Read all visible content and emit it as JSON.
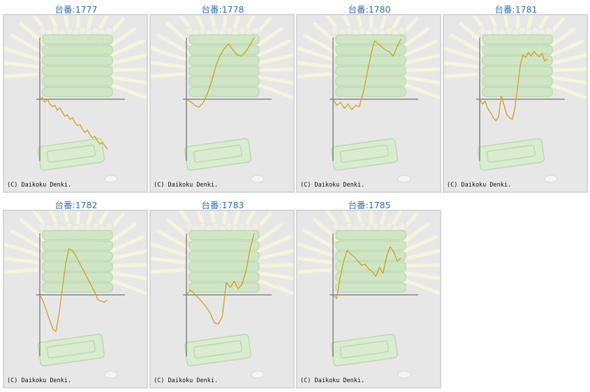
{
  "copyright": "(C) Daikoku Denki.",
  "colors": {
    "line": "#d59f1d",
    "axis": "#555555",
    "panel_bg": "#e7e7e7",
    "title": "#2e6eb5"
  },
  "machines": [
    {
      "label": "台番:1777"
    },
    {
      "label": "台番:1778"
    },
    {
      "label": "台番:1780"
    },
    {
      "label": "台番:1781"
    },
    {
      "label": "台番:1782"
    },
    {
      "label": "台番:1783"
    },
    {
      "label": "台番:1785"
    }
  ],
  "chart_data": [
    {
      "type": "line",
      "series": [
        {
          "values": [
            0.0,
            0.03,
            -0.05,
            0.0,
            -0.08,
            -0.12,
            -0.1,
            -0.18,
            -0.14,
            -0.21,
            -0.28,
            -0.25,
            -0.33,
            -0.3,
            -0.38,
            -0.43,
            -0.41,
            -0.49,
            -0.54,
            -0.5,
            -0.58,
            -0.63,
            -0.6,
            -0.68,
            -0.73,
            -0.7,
            -0.76,
            -0.81
          ]
        }
      ]
    },
    {
      "type": "line",
      "series": [
        {
          "values": [
            0.0,
            -0.04,
            -0.1,
            -0.13,
            -0.05,
            0.1,
            0.3,
            0.55,
            0.72,
            0.83,
            0.9,
            0.8,
            0.72,
            0.7,
            0.77,
            0.88,
            1.0
          ]
        }
      ]
    },
    {
      "type": "line",
      "series": [
        {
          "values": [
            0.0,
            -0.1,
            -0.05,
            -0.15,
            -0.08,
            -0.17,
            -0.1,
            -0.12,
            0.1,
            0.4,
            0.7,
            0.95,
            0.9,
            0.85,
            0.8,
            0.77,
            0.7,
            0.85,
            0.98
          ]
        }
      ]
    },
    {
      "type": "line",
      "series": [
        {
          "values": [
            0.0,
            -0.08,
            -0.03,
            -0.15,
            -0.22,
            -0.3,
            -0.35,
            -0.28,
            0.05,
            -0.1,
            -0.25,
            -0.3,
            -0.33,
            -0.15,
            0.2,
            0.55,
            0.72,
            0.68,
            0.76,
            0.7,
            0.78,
            0.73,
            0.69,
            0.75,
            0.62,
            0.65
          ]
        }
      ]
    },
    {
      "type": "line",
      "series": [
        {
          "values": [
            0.0,
            -0.1,
            -0.25,
            -0.4,
            -0.55,
            -0.6,
            -0.3,
            0.1,
            0.5,
            0.75,
            0.72,
            0.65,
            0.55,
            0.45,
            0.35,
            0.25,
            0.15,
            0.05,
            -0.08,
            -0.1,
            -0.12,
            -0.08
          ]
        }
      ]
    },
    {
      "type": "line",
      "series": [
        {
          "values": [
            0.0,
            0.08,
            0.02,
            -0.05,
            -0.12,
            -0.2,
            -0.3,
            -0.45,
            -0.48,
            -0.35,
            0.2,
            0.12,
            0.22,
            0.1,
            0.18,
            0.4,
            0.75,
            1.0
          ]
        }
      ]
    },
    {
      "type": "line",
      "series": [
        {
          "values": [
            0.0,
            -0.06,
            0.28,
            0.55,
            0.72,
            0.66,
            0.62,
            0.55,
            0.48,
            0.5,
            0.42,
            0.38,
            0.3,
            0.45,
            0.35,
            0.62,
            0.78,
            0.7,
            0.55,
            0.6
          ]
        }
      ]
    }
  ]
}
